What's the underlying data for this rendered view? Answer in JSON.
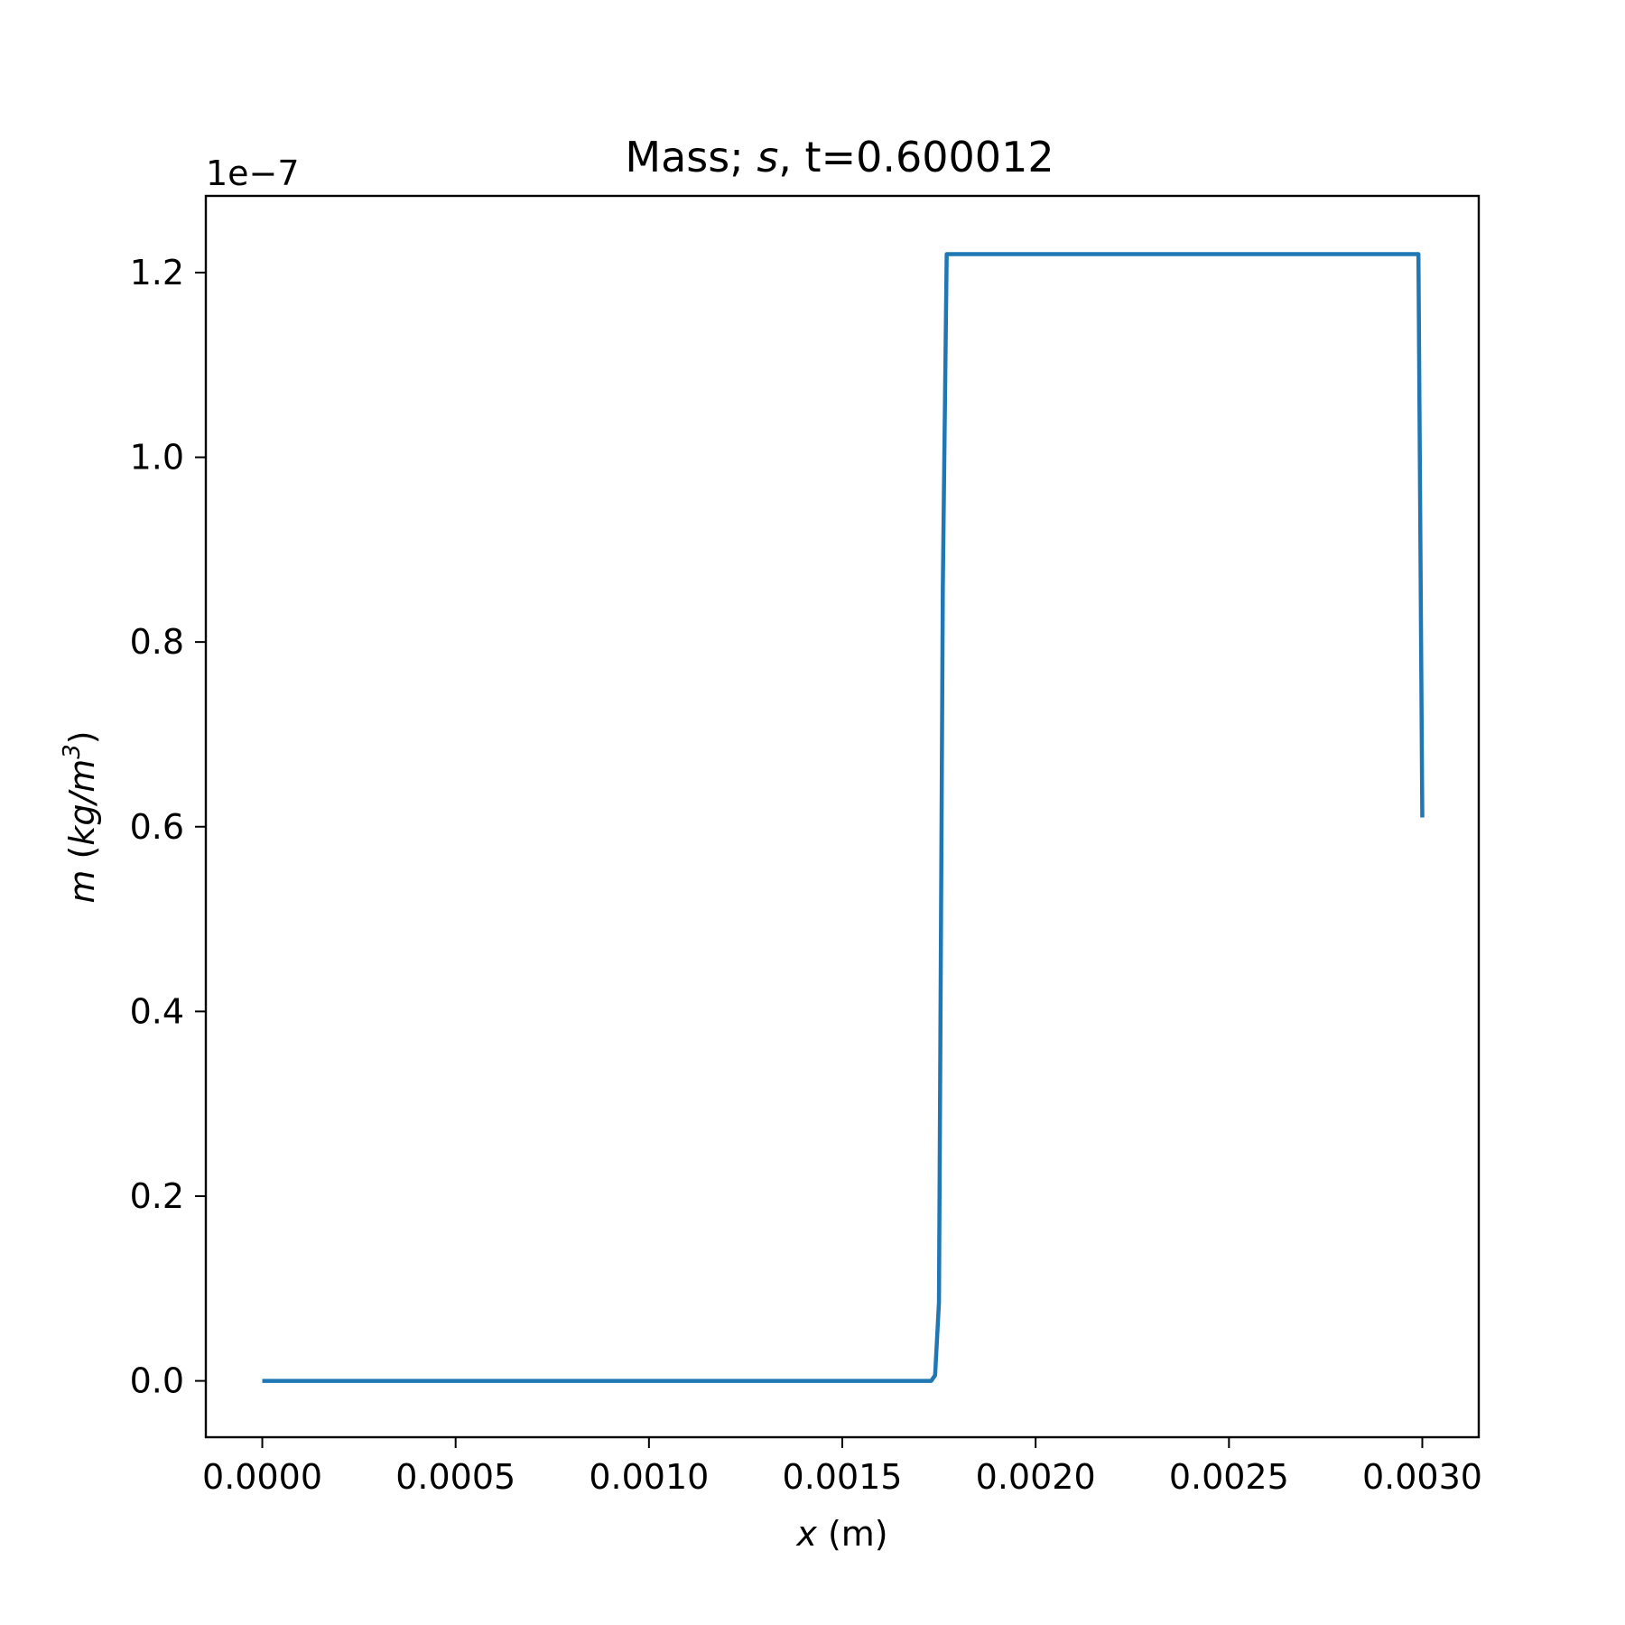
{
  "chart_data": {
    "type": "line",
    "title_prefix": "Mass; ",
    "title_var": "s",
    "title_suffix": ", t=0.600012",
    "xlabel_var": "x",
    "xlabel_unit": " (m)",
    "ylabel_var": "m",
    "ylabel_unit_open": " (",
    "ylabel_unit_italic": "kg/m",
    "ylabel_unit_sup": "3",
    "ylabel_unit_close": ")",
    "y_offset_label": "1e−7",
    "xlim": [
      -0.000146,
      0.003146
    ],
    "ylim": [
      -0.061,
      1.283
    ],
    "y_scale_note": "values in units of 1e-7 kg/m^3",
    "x_ticks": [
      0.0,
      0.0005,
      0.001,
      0.0015,
      0.002,
      0.0025,
      0.003
    ],
    "x_tick_labels": [
      "0.0000",
      "0.0005",
      "0.0010",
      "0.0015",
      "0.0020",
      "0.0025",
      "0.0030"
    ],
    "y_ticks": [
      0.0,
      0.2,
      0.4,
      0.6,
      0.8,
      1.0,
      1.2
    ],
    "y_tick_labels": [
      "0.0",
      "0.2",
      "0.4",
      "0.6",
      "0.8",
      "1.0",
      "1.2"
    ],
    "grid": false,
    "legend": "none",
    "series": [
      {
        "color": "#1f77b4",
        "x": [
          0.0,
          0.001,
          0.00172,
          0.00173,
          0.00174,
          0.00175,
          0.00176,
          0.00177,
          0.00178,
          0.002,
          0.0025,
          0.00299,
          0.003
        ],
        "y": [
          0.0,
          0.0,
          0.0,
          0.0,
          0.006,
          0.085,
          0.86,
          1.22,
          1.22,
          1.22,
          1.22,
          1.22,
          0.61
        ]
      }
    ]
  }
}
